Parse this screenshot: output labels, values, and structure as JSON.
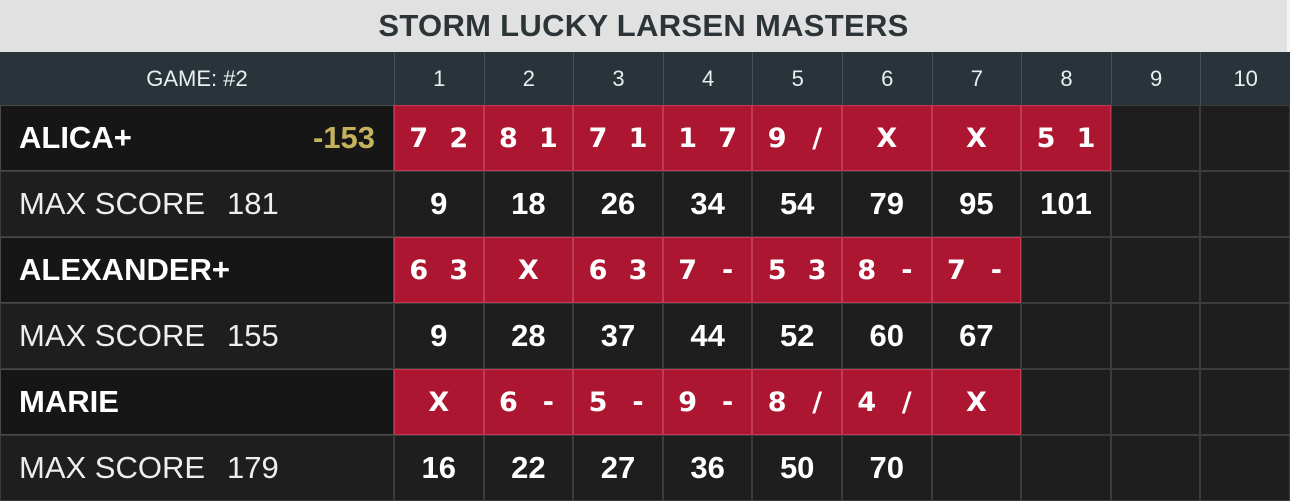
{
  "title": "STORM LUCKY LARSEN MASTERS",
  "header": {
    "game_label": "GAME: #2",
    "frames": [
      "1",
      "2",
      "3",
      "4",
      "5",
      "6",
      "7",
      "8",
      "9",
      "10"
    ]
  },
  "colors": {
    "rolls_bg": "#ac1631",
    "header_bg": "#28333a",
    "title_bg": "#e1e1e1",
    "handicap": "#c4b25c"
  },
  "players": [
    {
      "name": "ALICA+",
      "handicap": "-153",
      "max_label": "MAX SCORE",
      "max_value": "181",
      "rolls": [
        [
          "7",
          "2"
        ],
        [
          "8",
          "1"
        ],
        [
          "7",
          "1"
        ],
        [
          "1",
          "7"
        ],
        [
          "9",
          "/"
        ],
        [
          "X",
          ""
        ],
        [
          "X",
          ""
        ],
        [
          "5",
          "1"
        ],
        null,
        null
      ],
      "scores": [
        "9",
        "18",
        "26",
        "34",
        "54",
        "79",
        "95",
        "101",
        "",
        ""
      ]
    },
    {
      "name": "ALEXANDER+",
      "handicap": "",
      "max_label": "MAX SCORE",
      "max_value": "155",
      "rolls": [
        [
          "6",
          "3"
        ],
        [
          "X",
          ""
        ],
        [
          "6",
          "3"
        ],
        [
          "7",
          "-"
        ],
        [
          "5",
          "3"
        ],
        [
          "8",
          "-"
        ],
        [
          "7",
          "-"
        ],
        null,
        null,
        null
      ],
      "scores": [
        "9",
        "28",
        "37",
        "44",
        "52",
        "60",
        "67",
        "",
        "",
        ""
      ]
    },
    {
      "name": "MARIE",
      "handicap": "",
      "max_label": "MAX SCORE",
      "max_value": "179",
      "rolls": [
        [
          "X",
          ""
        ],
        [
          "6",
          "-"
        ],
        [
          "5",
          "-"
        ],
        [
          "9",
          "-"
        ],
        [
          "8",
          "/"
        ],
        [
          "4",
          "/"
        ],
        [
          "X",
          ""
        ],
        null,
        null,
        null
      ],
      "scores": [
        "16",
        "22",
        "27",
        "36",
        "50",
        "70",
        "",
        "",
        "",
        ""
      ]
    }
  ]
}
